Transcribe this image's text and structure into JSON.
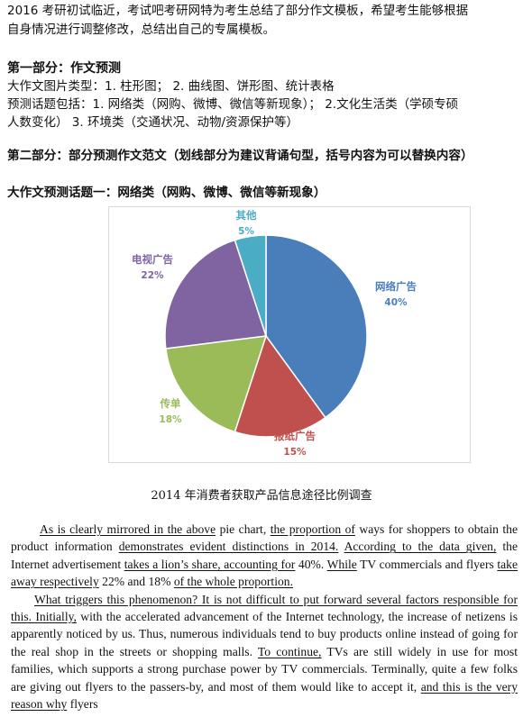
{
  "intro": {
    "line1": "2016 考研初试临近，考试吧考研网特为考生总结了部分作文模板，希望考生能够根据",
    "line2": "自身情况进行调整修改，总结出自己的专属模板。"
  },
  "part1": {
    "heading": "第一部分：作文预测",
    "types": "大作文图片类型：1. 柱形图；  2. 曲线图、饼形图、统计表格",
    "topics_line1": "预测话题包括：1. 网络类（网购、微博、微信等新现象）；   2.文化生活类（学硕专硕",
    "topics_line2": "人数变化）  3.    环境类（交通状况、动物/资源保护等）"
  },
  "part2": {
    "heading": "第二部分：部分预测作文范文（划线部分为建议背诵句型，括号内容为可以替换内容）",
    "topic_heading": "大作文预测话题一：网络类（网购、微博、微信等新现象）"
  },
  "chart_data": {
    "type": "pie",
    "title": "2014 年消费者获取产品信息途径比例调查",
    "slices": [
      {
        "label": "网络广告",
        "value": 40,
        "pct": "40%",
        "color": "#4a7ebb"
      },
      {
        "label": "报纸广告",
        "value": 15,
        "pct": "15%",
        "color": "#c0504d"
      },
      {
        "label": "传单",
        "value": 18,
        "pct": "18%",
        "color": "#9bbb59"
      },
      {
        "label": "电视广告",
        "value": 22,
        "pct": "22%",
        "color": "#8064a2"
      },
      {
        "label": "其他",
        "value": 5,
        "pct": "5%",
        "color": "#4bacc6"
      }
    ]
  },
  "essay": {
    "p1": {
      "a": "As is clearly mirrored in the above",
      "b": " pie chart, ",
      "c": "the proportion of",
      "d": " ways for shoppers to obtain the product information ",
      "e": "demonstrates evident distinctions in 2014.",
      "f": " ",
      "g": "According to the data given,",
      "h": " the Internet advertisement ",
      "i": "takes a lion’s share, accounting for",
      "j": " 40%. ",
      "k": "While",
      "l": " TV commercials and flyers ",
      "m": "take away respectively",
      "n": " 22% and 18% ",
      "o": "of the whole proportion."
    },
    "p2": {
      "a": "What triggers this phenomenon? It is not difficult to put forward several factors responsible for this. Initially,",
      "b": " with the accelerated advancement of the Internet technology, the increase of netizens is apparently noticed by us. Thus, numerous individuals tend to buy products online instead of going for the real shop in the streets or shopping malls. ",
      "c": "To continue,",
      "d": " TVs are still widely in use for most families, which supports a strong purchase power by TV commercials. Terminally, quite a few folks are giving out flyers to the passers-by, and most of them would like to accept it, ",
      "e": "and this is the very reason why",
      "f": " flyers"
    }
  }
}
